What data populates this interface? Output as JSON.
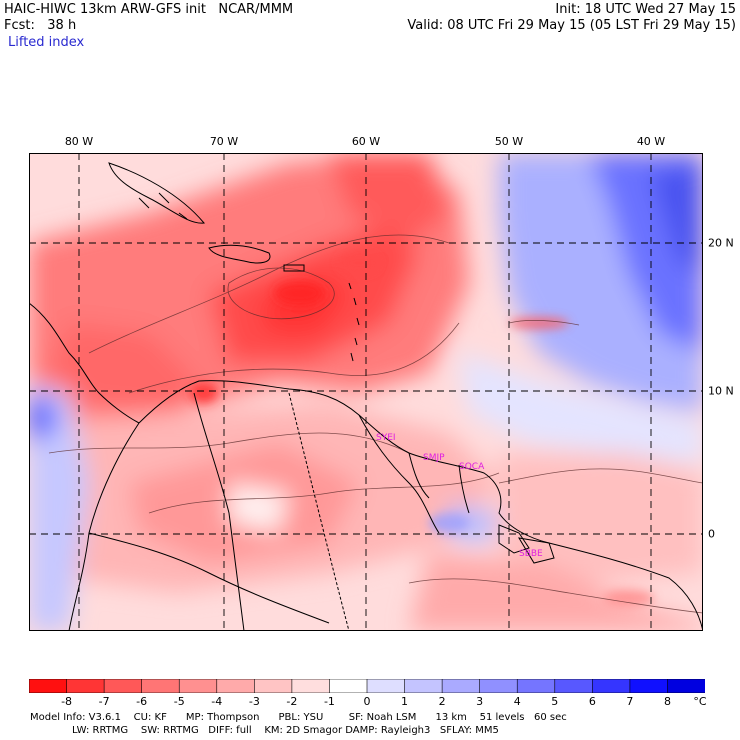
{
  "header": {
    "left_line1": "HAIC-HIWC 13km ARW-GFS init   NCAR/MMM",
    "left_line2": "Fcst:   38 h",
    "field": "Lifted index",
    "right_line1": "Init: 18 UTC Wed 27 May 15",
    "right_line2": "Valid: 08 UTC Fri 29 May 15 (05 LST Fri 29 May 15)"
  },
  "map": {
    "lon_labels": [
      "80 W",
      "70 W",
      "60 W",
      "50 W",
      "40 W"
    ],
    "lat_labels": [
      "20 N",
      "10 N",
      "0"
    ],
    "stations": [
      "SYEI",
      "SMJP",
      "SOCA",
      "SBBE"
    ]
  },
  "colorbar": {
    "labels": [
      "-8",
      "-7",
      "-6",
      "-5",
      "-4",
      "-3",
      "-2",
      "-1",
      "0",
      "1",
      "2",
      "3",
      "4",
      "5",
      "6",
      "7",
      "8"
    ],
    "unit": "°C",
    "colors": [
      "#ff1010",
      "#ff3535",
      "#ff5858",
      "#ff7575",
      "#ff9090",
      "#ffaaaa",
      "#ffc4c4",
      "#ffdede",
      "#ffffff",
      "#dedeff",
      "#c4c4ff",
      "#aaaaff",
      "#9090ff",
      "#7575ff",
      "#5858ff",
      "#3535ff",
      "#1010ff",
      "#0000e0"
    ]
  },
  "footer": {
    "line1": "Model Info: V3.6.1    CU: KF      MP: Thompson      PBL: YSU        SF: Noah LSM      13 km    51 levels   60 sec",
    "line2": "LW: RRTMG    SW: RRTMG   DIFF: full    KM: 2D Smagor DAMP: Rayleigh3   SFLAY: MM5"
  }
}
